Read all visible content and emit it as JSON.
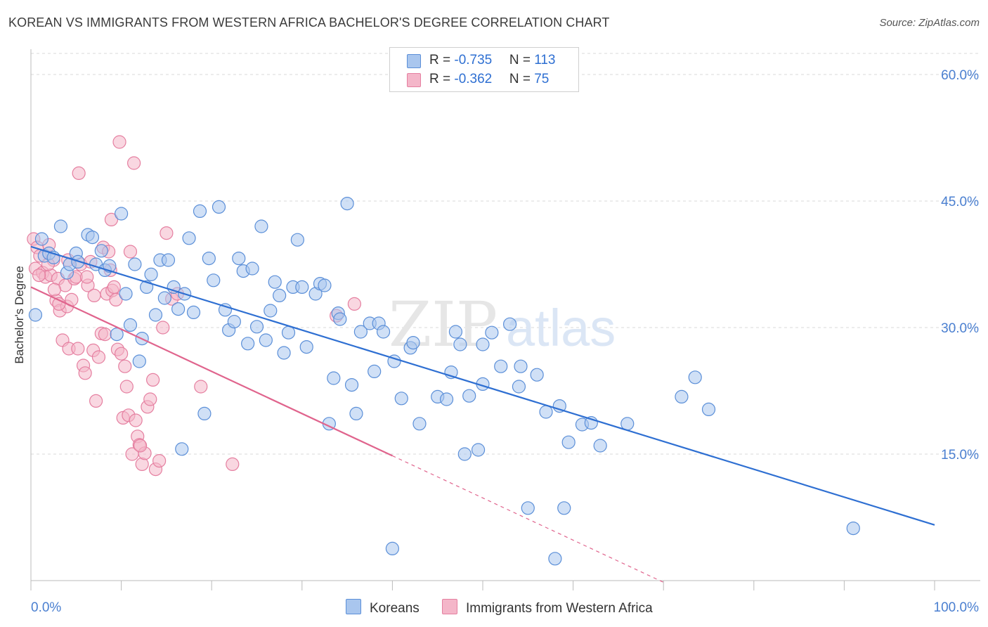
{
  "header": {
    "title": "KOREAN VS IMMIGRANTS FROM WESTERN AFRICA BACHELOR'S DEGREE CORRELATION CHART",
    "source": "Source: ZipAtlas.com"
  },
  "colors": {
    "blue_fill": "#a9c6ee",
    "blue_stroke": "#5b8fd8",
    "blue_line": "#2e6fd2",
    "pink_fill": "#f4b6c9",
    "pink_stroke": "#e57fa0",
    "pink_line": "#e0648d",
    "grid": "#d9d9d9",
    "tick_text": "#4a7fd0"
  },
  "legend": {
    "rows": [
      {
        "r_label": "R = ",
        "r_value": "-0.735",
        "n_label": "N = ",
        "n_value": "113",
        "color": "#a9c6ee"
      },
      {
        "r_label": "R = ",
        "r_value": "-0.362",
        "n_label": "N = ",
        "n_value": "75",
        "color": "#f4b6c9"
      }
    ]
  },
  "bottom_legend": [
    {
      "label": "Koreans",
      "color": "#a9c6ee"
    },
    {
      "label": "Immigrants from Western Africa",
      "color": "#f4b6c9"
    }
  ],
  "watermark": {
    "zip": "ZIP",
    "atlas": "atlas"
  },
  "chart_data": {
    "type": "scatter",
    "title": "KOREAN VS IMMIGRANTS FROM WESTERN AFRICA BACHELOR'S DEGREE CORRELATION CHART",
    "xlabel": "",
    "ylabel": "Bachelor's Degree",
    "xlim": [
      0,
      100
    ],
    "ylim": [
      0,
      63
    ],
    "x_tick_labels": [
      "0.0%",
      "100.0%"
    ],
    "y_ticks": [
      15,
      30,
      45,
      60
    ],
    "y_tick_labels": [
      "15.0%",
      "30.0%",
      "45.0%",
      "60.0%"
    ],
    "grid": true,
    "legend_position": "top-center",
    "series": [
      {
        "name": "Koreans",
        "r": -0.735,
        "n": 113,
        "trend": {
          "x": [
            0,
            100
          ],
          "y": [
            39.6,
            6.6
          ],
          "dashed_from": null
        },
        "points": [
          [
            0.5,
            31.5
          ],
          [
            1.2,
            40.5
          ],
          [
            1.5,
            38.5
          ],
          [
            2,
            38.8
          ],
          [
            2.5,
            38.3
          ],
          [
            3.3,
            42
          ],
          [
            4,
            36.5
          ],
          [
            4.3,
            37.5
          ],
          [
            5,
            38.8
          ],
          [
            5.2,
            37.8
          ],
          [
            6.3,
            41
          ],
          [
            6.8,
            40.7
          ],
          [
            7.2,
            37.5
          ],
          [
            7.8,
            39.1
          ],
          [
            8.2,
            36.8
          ],
          [
            8.7,
            37.3
          ],
          [
            9.5,
            29.2
          ],
          [
            10,
            43.5
          ],
          [
            10.5,
            34
          ],
          [
            11,
            30.3
          ],
          [
            11.5,
            37.5
          ],
          [
            12,
            26
          ],
          [
            12.3,
            28.7
          ],
          [
            12.8,
            34.8
          ],
          [
            13.3,
            36.3
          ],
          [
            13.8,
            31.5
          ],
          [
            14.3,
            38
          ],
          [
            14.8,
            33.5
          ],
          [
            15.2,
            38
          ],
          [
            15.8,
            34.8
          ],
          [
            16.3,
            32.2
          ],
          [
            16.7,
            15.6
          ],
          [
            17,
            34
          ],
          [
            17.5,
            40.6
          ],
          [
            18,
            31.8
          ],
          [
            18.7,
            43.8
          ],
          [
            19.2,
            19.8
          ],
          [
            19.7,
            38.2
          ],
          [
            20.2,
            35.6
          ],
          [
            20.8,
            44.3
          ],
          [
            21.5,
            32.1
          ],
          [
            21.9,
            29.7
          ],
          [
            22.5,
            30.7
          ],
          [
            23,
            38.2
          ],
          [
            23.5,
            36.7
          ],
          [
            24,
            28.1
          ],
          [
            24.5,
            37
          ],
          [
            25,
            30.1
          ],
          [
            25.5,
            42
          ],
          [
            26,
            28.5
          ],
          [
            26.5,
            32
          ],
          [
            27,
            35.4
          ],
          [
            27.5,
            33.8
          ],
          [
            28,
            27
          ],
          [
            28.5,
            29.4
          ],
          [
            29,
            34.8
          ],
          [
            29.5,
            40.4
          ],
          [
            30,
            34.8
          ],
          [
            30.5,
            27.7
          ],
          [
            31.5,
            34
          ],
          [
            32,
            35.2
          ],
          [
            32.5,
            35
          ],
          [
            33,
            18.6
          ],
          [
            33.5,
            24
          ],
          [
            34,
            31.7
          ],
          [
            34.2,
            31
          ],
          [
            35,
            44.7
          ],
          [
            35.5,
            23.2
          ],
          [
            36,
            19.8
          ],
          [
            36.5,
            29.5
          ],
          [
            37.5,
            30.5
          ],
          [
            38,
            24.8
          ],
          [
            38.5,
            30.5
          ],
          [
            39,
            29.5
          ],
          [
            40,
            3.8
          ],
          [
            40.2,
            26
          ],
          [
            41,
            21.6
          ],
          [
            42,
            27.6
          ],
          [
            42.3,
            28.2
          ],
          [
            43,
            18.6
          ],
          [
            45,
            21.8
          ],
          [
            46,
            21.5
          ],
          [
            46.5,
            24.7
          ],
          [
            47,
            29.5
          ],
          [
            47.5,
            28
          ],
          [
            48,
            15
          ],
          [
            48.5,
            21.9
          ],
          [
            49.5,
            15.5
          ],
          [
            50,
            28
          ],
          [
            50,
            23.3
          ],
          [
            51,
            29.4
          ],
          [
            52,
            25.4
          ],
          [
            53,
            30.4
          ],
          [
            54,
            23
          ],
          [
            54.2,
            25.4
          ],
          [
            55,
            8.6
          ],
          [
            56,
            24.4
          ],
          [
            57,
            20
          ],
          [
            58,
            2.6
          ],
          [
            58.5,
            20.7
          ],
          [
            59,
            8.6
          ],
          [
            59.5,
            16.4
          ],
          [
            61,
            18.5
          ],
          [
            62,
            18.7
          ],
          [
            63,
            16
          ],
          [
            66,
            18.6
          ],
          [
            72,
            21.8
          ],
          [
            73.5,
            24.1
          ],
          [
            75,
            20.3
          ],
          [
            91,
            6.2
          ]
        ]
      },
      {
        "name": "Immigrants from Western Africa",
        "r": -0.362,
        "n": 75,
        "trend": {
          "x": [
            0,
            40,
            70
          ],
          "y": [
            34.8,
            14.8,
            -0.2
          ],
          "dashed_from": 40
        },
        "points": [
          [
            0.3,
            40.5
          ],
          [
            0.5,
            37
          ],
          [
            0.7,
            39.5
          ],
          [
            1,
            38.5
          ],
          [
            1.3,
            36.5
          ],
          [
            1.6,
            36
          ],
          [
            2,
            39.8
          ],
          [
            2.2,
            36.2
          ],
          [
            2.5,
            38
          ],
          [
            2.8,
            33.2
          ],
          [
            3,
            35.8
          ],
          [
            3.2,
            32
          ],
          [
            3.5,
            28.5
          ],
          [
            3.8,
            35
          ],
          [
            4,
            32.5
          ],
          [
            4.2,
            27.5
          ],
          [
            4.5,
            33.3
          ],
          [
            4.8,
            35.8
          ],
          [
            5,
            36
          ],
          [
            5.2,
            27.5
          ],
          [
            5.5,
            37.5
          ],
          [
            5.8,
            25.5
          ],
          [
            6,
            24.6
          ],
          [
            6.3,
            35
          ],
          [
            6.6,
            37.8
          ],
          [
            6.9,
            27.3
          ],
          [
            7.2,
            21.3
          ],
          [
            7.5,
            26.5
          ],
          [
            7.8,
            29.3
          ],
          [
            8,
            39.5
          ],
          [
            8.2,
            29.2
          ],
          [
            8.4,
            34
          ],
          [
            8.6,
            39
          ],
          [
            8.8,
            36.8
          ],
          [
            9,
            34.4
          ],
          [
            9.2,
            34.8
          ],
          [
            9.4,
            33.3
          ],
          [
            9.6,
            27.4
          ],
          [
            9.8,
            52
          ],
          [
            10,
            26.9
          ],
          [
            10.2,
            19.3
          ],
          [
            10.4,
            25.4
          ],
          [
            10.6,
            23
          ],
          [
            10.8,
            19.6
          ],
          [
            11,
            39
          ],
          [
            11.2,
            15
          ],
          [
            11.4,
            49.5
          ],
          [
            11.6,
            19
          ],
          [
            11.8,
            17.1
          ],
          [
            12,
            16.1
          ],
          [
            12.3,
            13.8
          ],
          [
            12.6,
            15.1
          ],
          [
            12.9,
            20.6
          ],
          [
            13.2,
            21.5
          ],
          [
            13.5,
            23.8
          ],
          [
            13.8,
            13.2
          ],
          [
            14.2,
            14.2
          ],
          [
            14.6,
            30
          ],
          [
            15,
            41.2
          ],
          [
            15.6,
            33.4
          ],
          [
            16.2,
            34
          ],
          [
            18.8,
            23
          ],
          [
            22.3,
            13.8
          ],
          [
            33.8,
            31.4
          ],
          [
            35.8,
            32.8
          ],
          [
            5.3,
            48.3
          ],
          [
            8.9,
            42.8
          ],
          [
            2.6,
            34.5
          ],
          [
            3.1,
            32.8
          ],
          [
            4.1,
            38
          ],
          [
            6.2,
            36
          ],
          [
            7.0,
            33.8
          ],
          [
            1.9,
            37.5
          ],
          [
            0.9,
            36.2
          ],
          [
            12.1,
            16
          ]
        ]
      }
    ]
  }
}
